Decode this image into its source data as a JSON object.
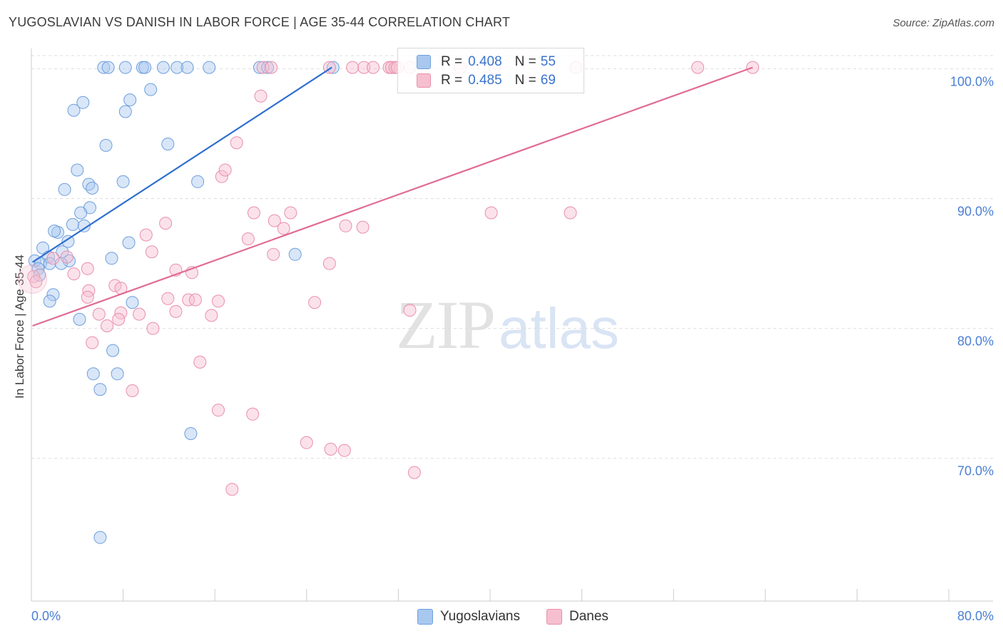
{
  "header": {
    "title": "YUGOSLAVIAN VS DANISH IN LABOR FORCE | AGE 35-44 CORRELATION CHART",
    "source": "Source: ZipAtlas.com"
  },
  "watermark": {
    "zip": "ZIP",
    "atlas": "atlas"
  },
  "legend": {
    "r_label": "R =",
    "n_label": "N =",
    "series": [
      {
        "r": "0.408",
        "n": "55"
      },
      {
        "r": "0.485",
        "n": "69"
      }
    ]
  },
  "bottom_legend": {
    "items": [
      "Yugoslavians",
      "Danes"
    ]
  },
  "colors": {
    "blue_fill": "#a9c8ef",
    "blue_stroke": "#6f9fdc",
    "blue_line": "#2f6fcf",
    "pink_fill": "#f6bfd0",
    "pink_stroke": "#e98fac",
    "pink_line": "#e06b96",
    "grid": "#dddddd",
    "tick_text": "#4a7fd4"
  },
  "chart_data": {
    "type": "scatter",
    "title": "YUGOSLAVIAN VS DANISH IN LABOR FORCE | AGE 35-44 CORRELATION CHART",
    "xlabel": "",
    "ylabel": "In Labor Force | Age 35-44",
    "xlim": [
      0,
      80
    ],
    "ylim": [
      59,
      102
    ],
    "x_tick_labels": [
      "0.0%",
      "80.0%"
    ],
    "y_ticks": [
      70,
      80,
      90,
      100
    ],
    "y_tick_labels": [
      "70.0%",
      "80.0%",
      "90.0%",
      "100.0%"
    ],
    "grid": true,
    "series": [
      {
        "name": "Yugoslavians",
        "r": 0.408,
        "n": 55,
        "trend": {
          "x": [
            0.1,
            26.2
          ],
          "y": [
            85.1,
            100.1
          ]
        },
        "points": [
          [
            6.3,
            100.1
          ],
          [
            6.7,
            100.1
          ],
          [
            8.2,
            100.1
          ],
          [
            9.7,
            100.1
          ],
          [
            9.9,
            100.1
          ],
          [
            11.5,
            100.1
          ],
          [
            12.7,
            100.1
          ],
          [
            13.6,
            100.1
          ],
          [
            15.5,
            100.1
          ],
          [
            19.9,
            100.1
          ],
          [
            20.6,
            100.1
          ],
          [
            26.3,
            100.1
          ],
          [
            10.4,
            98.4
          ],
          [
            4.5,
            97.4
          ],
          [
            3.7,
            96.8
          ],
          [
            8.2,
            96.7
          ],
          [
            8.6,
            97.6
          ],
          [
            6.5,
            94.1
          ],
          [
            11.9,
            94.2
          ],
          [
            4.0,
            92.2
          ],
          [
            5.0,
            91.1
          ],
          [
            5.3,
            90.8
          ],
          [
            8.0,
            91.3
          ],
          [
            14.5,
            91.3
          ],
          [
            2.9,
            90.7
          ],
          [
            5.1,
            89.3
          ],
          [
            4.3,
            88.9
          ],
          [
            3.6,
            88.0
          ],
          [
            4.6,
            87.9
          ],
          [
            2.3,
            87.4
          ],
          [
            2.0,
            87.5
          ],
          [
            3.2,
            86.7
          ],
          [
            8.5,
            86.6
          ],
          [
            1.0,
            86.2
          ],
          [
            2.7,
            85.9
          ],
          [
            1.5,
            85.5
          ],
          [
            3.3,
            85.2
          ],
          [
            0.3,
            85.2
          ],
          [
            0.8,
            85.0
          ],
          [
            1.6,
            85.0
          ],
          [
            2.6,
            85.0
          ],
          [
            0.6,
            84.6
          ],
          [
            0.7,
            84.1
          ],
          [
            7.0,
            85.4
          ],
          [
            23.0,
            85.7
          ],
          [
            1.9,
            82.6
          ],
          [
            1.6,
            82.1
          ],
          [
            8.8,
            82.0
          ],
          [
            4.2,
            80.7
          ],
          [
            7.1,
            78.3
          ],
          [
            5.4,
            76.5
          ],
          [
            7.5,
            76.5
          ],
          [
            6.0,
            75.3
          ],
          [
            13.9,
            71.9
          ],
          [
            6.0,
            63.9
          ]
        ]
      },
      {
        "name": "Danes",
        "r": 0.485,
        "n": 69,
        "trend": {
          "x": [
            0.1,
            62.9
          ],
          "y": [
            80.2,
            100.1
          ]
        },
        "points": [
          [
            20.2,
            100.1
          ],
          [
            20.9,
            100.1
          ],
          [
            26.0,
            100.1
          ],
          [
            28.0,
            100.1
          ],
          [
            29.0,
            100.1
          ],
          [
            29.8,
            100.1
          ],
          [
            31.2,
            100.1
          ],
          [
            31.4,
            100.1
          ],
          [
            31.7,
            100.1
          ],
          [
            31.9,
            100.1
          ],
          [
            33.0,
            100.1
          ],
          [
            37.4,
            100.1
          ],
          [
            40.4,
            100.1
          ],
          [
            47.5,
            100.1
          ],
          [
            58.1,
            100.1
          ],
          [
            62.9,
            100.1
          ],
          [
            20.0,
            97.9
          ],
          [
            17.9,
            94.3
          ],
          [
            16.6,
            91.7
          ],
          [
            16.9,
            92.2
          ],
          [
            19.4,
            88.9
          ],
          [
            22.6,
            88.9
          ],
          [
            21.2,
            88.3
          ],
          [
            11.7,
            88.1
          ],
          [
            22.0,
            87.7
          ],
          [
            27.4,
            87.9
          ],
          [
            28.9,
            87.8
          ],
          [
            40.1,
            88.9
          ],
          [
            47.0,
            88.9
          ],
          [
            10.0,
            87.2
          ],
          [
            18.9,
            86.9
          ],
          [
            10.5,
            85.9
          ],
          [
            21.1,
            85.7
          ],
          [
            1.9,
            85.4
          ],
          [
            3.1,
            85.5
          ],
          [
            26.0,
            85.0
          ],
          [
            4.9,
            84.6
          ],
          [
            12.6,
            84.5
          ],
          [
            3.7,
            84.2
          ],
          [
            14.0,
            84.3
          ],
          [
            0.2,
            84.0
          ],
          [
            0.4,
            83.6
          ],
          [
            7.3,
            83.3
          ],
          [
            7.8,
            83.1
          ],
          [
            5.0,
            82.9
          ],
          [
            4.9,
            82.4
          ],
          [
            13.7,
            82.2
          ],
          [
            11.9,
            82.3
          ],
          [
            14.3,
            82.2
          ],
          [
            16.3,
            82.1
          ],
          [
            24.7,
            82.0
          ],
          [
            33.0,
            81.4
          ],
          [
            7.8,
            81.2
          ],
          [
            5.9,
            81.1
          ],
          [
            12.6,
            81.3
          ],
          [
            15.7,
            81.0
          ],
          [
            9.4,
            81.1
          ],
          [
            7.6,
            80.7
          ],
          [
            6.6,
            80.2
          ],
          [
            10.6,
            80.0
          ],
          [
            5.3,
            78.9
          ],
          [
            14.7,
            77.4
          ],
          [
            8.8,
            75.2
          ],
          [
            16.3,
            73.7
          ],
          [
            19.3,
            73.4
          ],
          [
            24.0,
            71.2
          ],
          [
            26.1,
            70.7
          ],
          [
            27.3,
            70.6
          ],
          [
            17.5,
            67.6
          ],
          [
            33.4,
            68.9
          ]
        ]
      }
    ]
  }
}
